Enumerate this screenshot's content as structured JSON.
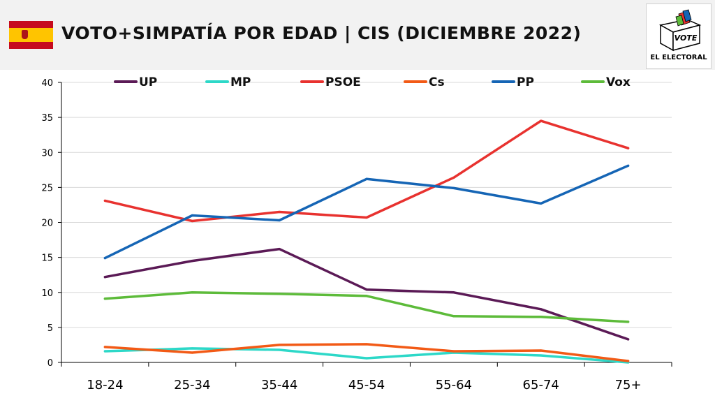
{
  "header": {
    "title": "VOTO+SIMPATÍA POR EDAD | CIS (DICIEMBRE 2022)",
    "logo_vote": "VOTE",
    "logo_text": "EL ELECTORAL"
  },
  "chart_data": {
    "type": "line",
    "title": "VOTO+SIMPATÍA POR EDAD | CIS (DICIEMBRE 2022)",
    "xlabel": "",
    "ylabel": "",
    "ylim": [
      0,
      40
    ],
    "yticks": [
      0,
      5,
      10,
      15,
      20,
      25,
      30,
      35,
      40
    ],
    "grid": true,
    "legend_position": "top",
    "categories": [
      "18-24",
      "25-34",
      "35-44",
      "45-54",
      "55-64",
      "65-74",
      "75+"
    ],
    "series": [
      {
        "name": "UP",
        "color": "#5b1a56",
        "values": [
          12.2,
          14.5,
          16.2,
          10.4,
          10.0,
          7.6,
          3.3
        ]
      },
      {
        "name": "MP",
        "color": "#2dd8c8",
        "values": [
          1.6,
          2.0,
          1.8,
          0.6,
          1.4,
          1.0,
          0.0
        ]
      },
      {
        "name": "PSOE",
        "color": "#e8322f",
        "values": [
          23.1,
          20.2,
          21.5,
          20.7,
          26.4,
          34.5,
          30.6
        ]
      },
      {
        "name": "Cs",
        "color": "#f25a16",
        "values": [
          2.2,
          1.4,
          2.5,
          2.6,
          1.6,
          1.7,
          0.2
        ]
      },
      {
        "name": "PP",
        "color": "#1565b5",
        "values": [
          14.9,
          21.0,
          20.3,
          26.2,
          24.9,
          22.7,
          28.1
        ]
      },
      {
        "name": "Vox",
        "color": "#5dbb3a",
        "values": [
          9.1,
          10.0,
          9.8,
          9.5,
          6.6,
          6.5,
          5.8
        ]
      }
    ]
  }
}
